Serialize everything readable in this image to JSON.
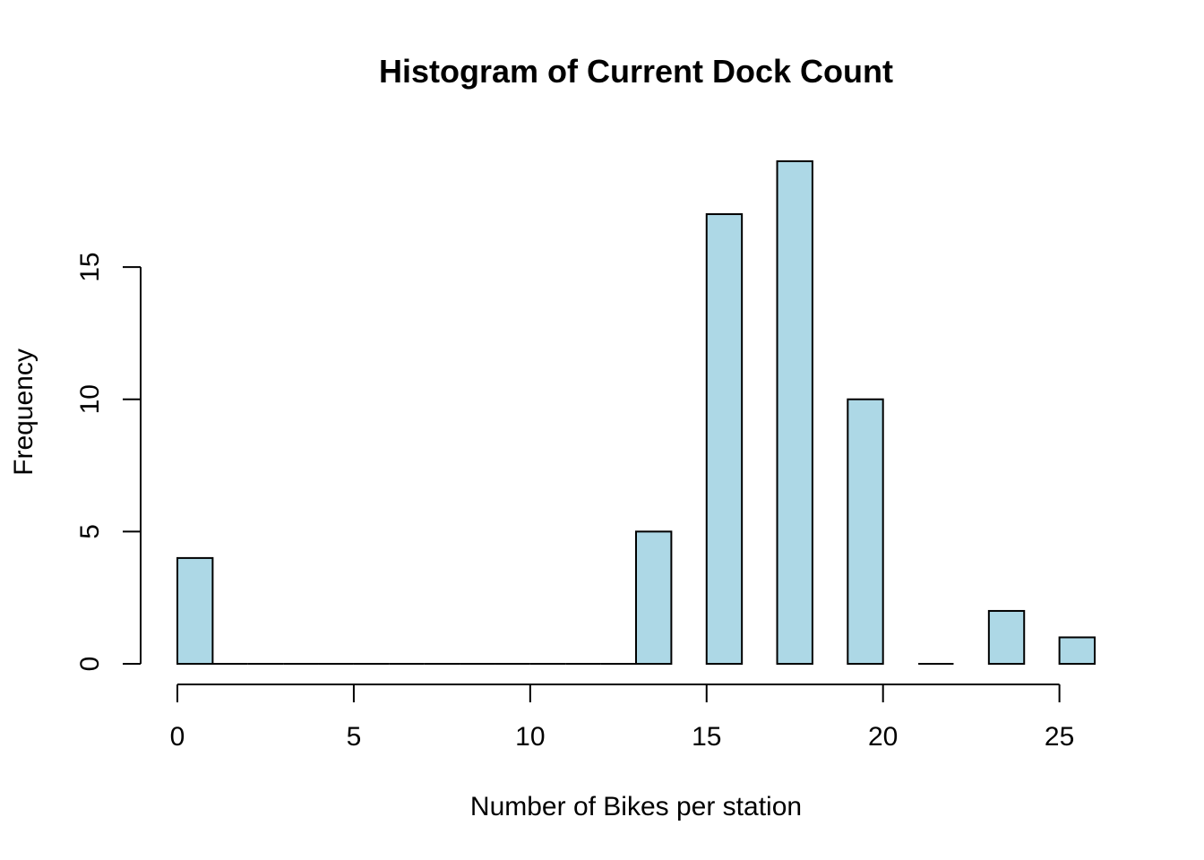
{
  "chart_data": {
    "type": "bar",
    "title": "Histogram of Current Dock Count",
    "xlabel": "Number of Bikes per station",
    "ylabel": "Frequency",
    "bins": [
      [
        0,
        1
      ],
      [
        1,
        2
      ],
      [
        2,
        3
      ],
      [
        3,
        4
      ],
      [
        4,
        5
      ],
      [
        5,
        6
      ],
      [
        6,
        7
      ],
      [
        7,
        8
      ],
      [
        8,
        9
      ],
      [
        9,
        10
      ],
      [
        10,
        11
      ],
      [
        11,
        12
      ],
      [
        12,
        13
      ],
      [
        13,
        14
      ],
      [
        15,
        16
      ],
      [
        17,
        18
      ],
      [
        19,
        20
      ],
      [
        21,
        22
      ],
      [
        23,
        24
      ],
      [
        25,
        26
      ]
    ],
    "values": [
      4,
      0,
      0,
      0,
      0,
      0,
      0,
      0,
      0,
      0,
      0,
      0,
      0,
      5,
      17,
      19,
      10,
      0,
      2,
      1
    ],
    "xlim": [
      0,
      26
    ],
    "ylim": [
      0,
      19
    ],
    "x_ticks": [
      0,
      5,
      10,
      15,
      20,
      25
    ],
    "y_ticks": [
      0,
      5,
      10,
      15
    ],
    "bar_color": "#add8e6",
    "edge_color": "#000000",
    "grid": false,
    "legend": "none"
  }
}
